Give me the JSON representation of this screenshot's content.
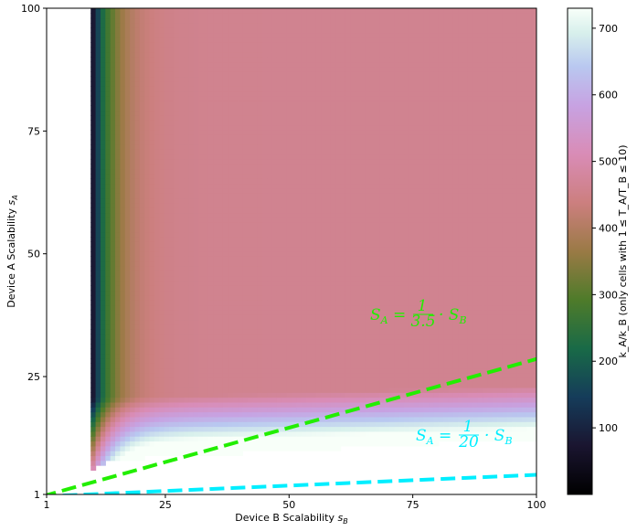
{
  "chart_data": {
    "type": "heatmap",
    "title": "",
    "xlabel": "Device B Scalability",
    "xlabel_var": "s",
    "xlabel_sub": "B",
    "ylabel": "Device A Scalability",
    "ylabel_var": "s",
    "ylabel_sub": "A",
    "xlim": [
      1,
      100
    ],
    "ylim": [
      1,
      100
    ],
    "x_ticks": [
      1,
      25,
      50,
      75,
      100
    ],
    "y_ticks": [
      1,
      25,
      50,
      75,
      100
    ],
    "colorbar": {
      "label": "k_A/k_B (only cells with 1 ≤ T_A/T_B ≤ 10)",
      "range": [
        0,
        730
      ],
      "ticks": [
        100,
        200,
        300,
        400,
        500,
        600,
        700
      ],
      "colormap": "cubehelix"
    },
    "heatmap_model": {
      "description": "values shown only where the T_A/T_B ratio constraint holds; left and lower regions are blank",
      "x_start": 10,
      "y_start": 6
    },
    "lines": [
      {
        "label_prefix": "S",
        "label_sub": "A",
        "num": "1",
        "den": "3.5",
        "suffix": "S",
        "suffix_sub": "B",
        "slope": 0.2857,
        "color": "#22ee00",
        "style": "dashed"
      },
      {
        "label_prefix": "S",
        "label_sub": "A",
        "num": "1",
        "den": "20",
        "suffix": "S",
        "suffix_sub": "B",
        "slope": 0.05,
        "color": "#00eeff",
        "style": "dashed"
      }
    ]
  }
}
